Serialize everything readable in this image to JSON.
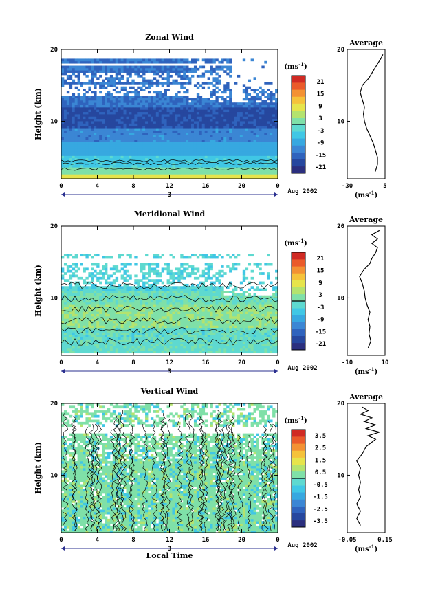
{
  "figure": {
    "x_label": "Local Time",
    "date_label": "Aug 2002",
    "day_label": "3",
    "x_ticks": [
      "0",
      "4",
      "8",
      "12",
      "16",
      "20",
      "0"
    ]
  },
  "colormap": [
    "#2b2f7e",
    "#26479e",
    "#2f63bd",
    "#3b86d4",
    "#37a8e0",
    "#40c7e5",
    "#5ed9d0",
    "#7fe0a8",
    "#b4e36e",
    "#e6e44b",
    "#f5c23a",
    "#f39133",
    "#ea5a2a",
    "#d02a23"
  ],
  "chart_data": [
    {
      "type": "heatmap",
      "title": "Zonal Wind",
      "ylabel": "Height (km)",
      "y_ticks": [
        "20",
        "10"
      ],
      "ylim": [
        2,
        20
      ],
      "xlim": [
        0,
        24
      ],
      "colorbar": {
        "unit": "(ms",
        "exp": "-1",
        "unit_end": ")",
        "ticks": [
          "21",
          "15",
          "9",
          "3",
          "-3",
          "-9",
          "-15",
          "-21"
        ],
        "range": [
          -24,
          24
        ],
        "zero_line": true
      },
      "profile": {
        "title": "Average",
        "xlim": [
          -30,
          5
        ],
        "x_ticks": [
          "-30",
          "5"
        ],
        "y_ticks": [
          "20",
          "10"
        ],
        "unit": "(ms",
        "exp": "-1",
        "unit_end": ")",
        "points": [
          [
            -4,
            3
          ],
          [
            -2,
            4
          ],
          [
            -2,
            5
          ],
          [
            -4,
            6
          ],
          [
            -6,
            7
          ],
          [
            -9,
            8
          ],
          [
            -12,
            9
          ],
          [
            -14,
            10
          ],
          [
            -15,
            11
          ],
          [
            -14,
            12
          ],
          [
            -16,
            13
          ],
          [
            -18,
            14
          ],
          [
            -16,
            15
          ],
          [
            -10,
            16
          ],
          [
            -6,
            17
          ],
          [
            -2,
            18
          ],
          [
            1,
            18.7
          ],
          [
            3,
            19.3
          ]
        ]
      }
    },
    {
      "type": "heatmap",
      "title": "Meridional Wind",
      "ylabel": "Height (km)",
      "y_ticks": [
        "20",
        "10"
      ],
      "ylim": [
        2,
        20
      ],
      "xlim": [
        0,
        24
      ],
      "colorbar": {
        "unit": "(ms",
        "exp": "-1",
        "unit_end": ")",
        "ticks": [
          "21",
          "15",
          "9",
          "3",
          "-3",
          "-9",
          "-15",
          "-21"
        ],
        "range": [
          -24,
          24
        ],
        "zero_line": true
      },
      "profile": {
        "title": "Average",
        "xlim": [
          -10,
          10
        ],
        "x_ticks": [
          "-10",
          "10"
        ],
        "y_ticks": [
          "20",
          "10"
        ],
        "unit": "(ms",
        "exp": "-1",
        "unit_end": ")",
        "points": [
          [
            1,
            3
          ],
          [
            2.5,
            4
          ],
          [
            1.5,
            5
          ],
          [
            2,
            6
          ],
          [
            1,
            7
          ],
          [
            2,
            8
          ],
          [
            0.5,
            9
          ],
          [
            -0.5,
            10
          ],
          [
            -1,
            11
          ],
          [
            -2,
            12
          ],
          [
            -3.5,
            13
          ],
          [
            -1,
            14
          ],
          [
            2,
            14.8
          ],
          [
            3,
            15.5
          ],
          [
            5,
            16.3
          ],
          [
            6,
            17
          ],
          [
            3,
            17.6
          ],
          [
            6,
            18.2
          ],
          [
            3,
            18.8
          ],
          [
            7,
            19.4
          ]
        ]
      }
    },
    {
      "type": "heatmap",
      "title": "Vertical Wind",
      "ylabel": "Height (km)",
      "y_ticks": [
        "20",
        "10"
      ],
      "ylim": [
        2,
        20
      ],
      "xlim": [
        0,
        24
      ],
      "colorbar": {
        "unit": "(ms",
        "exp": "-1",
        "unit_end": ")",
        "ticks": [
          "3.5",
          "2.5",
          "1.5",
          "0.5",
          "-0.5",
          "-1.5",
          "-2.5",
          "-3.5"
        ],
        "range": [
          -4,
          4
        ],
        "zero_line": true
      },
      "profile": {
        "title": "Average",
        "xlim": [
          -0.05,
          0.15
        ],
        "x_ticks": [
          "-0.05",
          "0.15"
        ],
        "y_ticks": [
          "20",
          "10"
        ],
        "unit": "(ms",
        "exp": "-1",
        "unit_end": ")",
        "points": [
          [
            0.02,
            3
          ],
          [
            0.0,
            4
          ],
          [
            0.02,
            5
          ],
          [
            0.0,
            6
          ],
          [
            0.02,
            7
          ],
          [
            0.01,
            8
          ],
          [
            0.02,
            9
          ],
          [
            0.01,
            10
          ],
          [
            0.02,
            11
          ],
          [
            0.0,
            12
          ],
          [
            0.03,
            13
          ],
          [
            0.05,
            14
          ],
          [
            0.1,
            15
          ],
          [
            0.06,
            15.5
          ],
          [
            0.12,
            16
          ],
          [
            0.05,
            16.5
          ],
          [
            0.1,
            17
          ],
          [
            0.04,
            17.5
          ],
          [
            0.08,
            18
          ],
          [
            0.02,
            18.5
          ],
          [
            0.06,
            19
          ],
          [
            0.03,
            19.5
          ]
        ]
      }
    }
  ]
}
